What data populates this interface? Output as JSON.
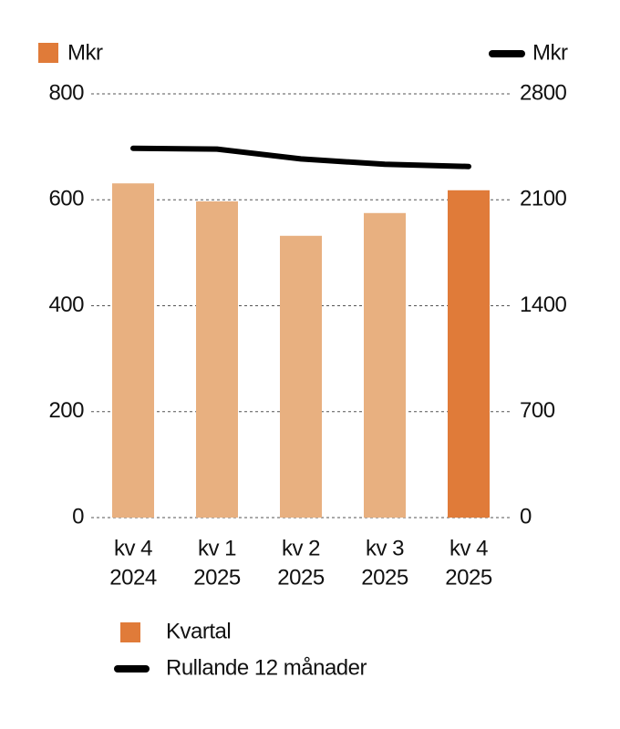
{
  "chart_data": {
    "type": "bar_line",
    "y_label": "Mkr",
    "y2_label": "Mkr",
    "categories": [
      [
        "kv 4",
        "2024"
      ],
      [
        "kv 1",
        "2025"
      ],
      [
        "kv 2",
        "2025"
      ],
      [
        "kv 3",
        "2025"
      ],
      [
        "kv 4",
        "2025"
      ]
    ],
    "series": [
      {
        "name": "Kvartal",
        "type": "bar",
        "color": "#e07b39",
        "colors": [
          "#e8b080",
          "#e8b080",
          "#e8b080",
          "#e8b080",
          "#e07b39"
        ],
        "values": [
          631,
          597,
          532,
          575,
          618
        ]
      },
      {
        "name": "Rullande 12 månader",
        "type": "line",
        "axis": "y2",
        "color": "#000000",
        "values": [
          2440,
          2435,
          2370,
          2335,
          2320
        ]
      }
    ],
    "ylim": [
      0,
      800
    ],
    "yticks": [
      0,
      200,
      400,
      600,
      800
    ],
    "y2lim": [
      0,
      2800
    ],
    "y2ticks": [
      0,
      700,
      1400,
      2100,
      2800
    ],
    "grid": true
  }
}
